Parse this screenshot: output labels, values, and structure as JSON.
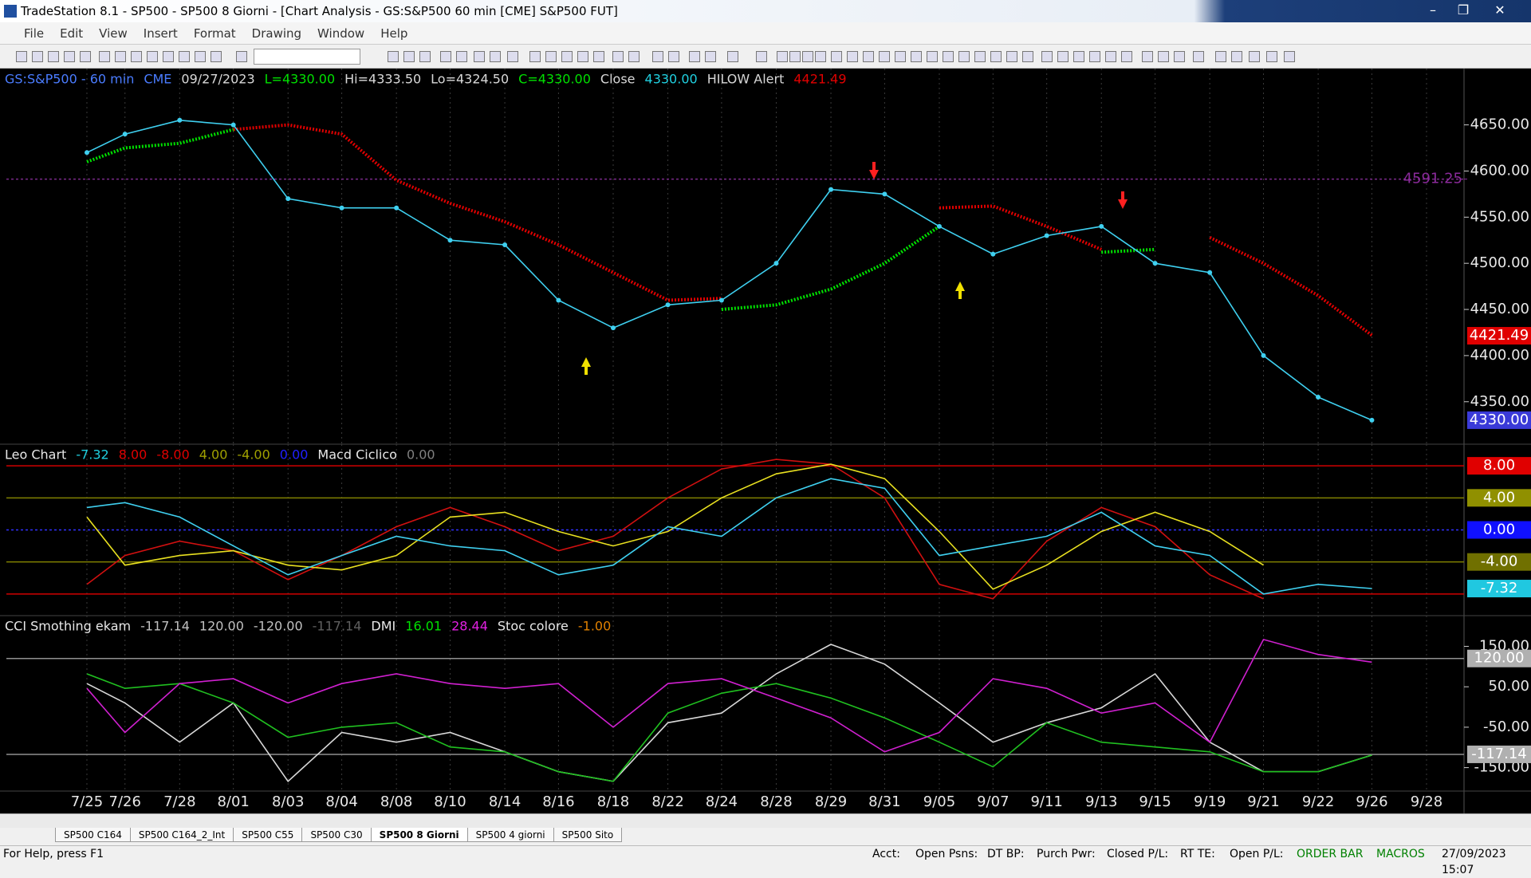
{
  "window": {
    "title": "TradeStation 8.1 - SP500 - SP500 8 Giorni - [Chart Analysis - GS:S&P500  60 min  [CME] S&P500 FUT]",
    "menu": [
      "File",
      "Edit",
      "View",
      "Insert",
      "Format",
      "Drawing",
      "Window",
      "Help"
    ],
    "tabs": [
      "SP500 C164",
      "SP500 C164_2_Int",
      "SP500 C55",
      "SP500 C30",
      "SP500 8 Giorni",
      "SP500 4 giorni",
      "SP500 Sito"
    ],
    "active_tab": 4,
    "status": [
      "For Help, press F1",
      "Acct:",
      "Open Psns:",
      "DT BP:",
      "Purch Pwr:",
      "Closed P/L:",
      "RT TE:",
      "Open P/L:",
      "ORDER BAR",
      "MACROS",
      "27/09/2023 15:07"
    ]
  },
  "chart_data": [
    {
      "type": "line",
      "header": [
        {
          "text": "GS:S&P500 - 60 min",
          "color": "#4a7cff"
        },
        {
          "text": "CME",
          "color": "#4a7cff"
        },
        {
          "text": "09/27/2023",
          "color": "#d8d8d8"
        },
        {
          "text": "L=4330.00",
          "color": "#00e000"
        },
        {
          "text": "Hi=4333.50",
          "color": "#d8d8d8"
        },
        {
          "text": "Lo=4324.50",
          "color": "#d8d8d8"
        },
        {
          "text": "C=4330.00",
          "color": "#00e000"
        },
        {
          "text": "Close",
          "color": "#d8d8d8"
        },
        {
          "text": "4330.00",
          "color": "#20d0e0"
        },
        {
          "text": "HILOW Alert",
          "color": "#d8d8d8"
        },
        {
          "text": "4421.49",
          "color": "#e00000"
        }
      ],
      "categories": [
        "7/25",
        "7/26",
        "7/28",
        "8/01",
        "8/03",
        "8/04",
        "8/08",
        "8/10",
        "8/14",
        "8/16",
        "8/18",
        "8/22",
        "8/24",
        "8/28",
        "8/29",
        "8/31",
        "9/05",
        "9/07",
        "9/11",
        "9/13",
        "9/15",
        "9/19",
        "9/21",
        "9/22",
        "9/26",
        "9/28"
      ],
      "grid": true,
      "ylim": [
        4304,
        4711
      ],
      "yticks": [
        {
          "value": 4350,
          "label": "4350.00"
        },
        {
          "value": 4400,
          "label": "4400.00"
        },
        {
          "value": 4450,
          "label": "4450.00"
        },
        {
          "value": 4500,
          "label": "4500.00"
        },
        {
          "value": 4550,
          "label": "4550.00"
        },
        {
          "value": 4600,
          "label": "4600.00"
        },
        {
          "value": 4650,
          "label": "4650.00"
        }
      ],
      "hlines": [
        {
          "value": 4591.25,
          "color": "#7a2a8a",
          "dash": true
        }
      ],
      "markers": [
        {
          "value": 4591.25,
          "label": "4591.25",
          "color": "#8a2a9a",
          "box": false
        },
        {
          "value": 4421.49,
          "label": "4421.49",
          "color": "#e00000",
          "box": true
        },
        {
          "value": 4330,
          "label": "4330.00",
          "color": "#3a3ad8",
          "box": true
        }
      ],
      "series": [
        {
          "color": "#e00000",
          "dots": false,
          "values": [
            null,
            null,
            null,
            4645,
            4650,
            4640,
            4590,
            4565,
            4545,
            4520,
            4490,
            4460,
            4462,
            null,
            null,
            null,
            4560,
            4562,
            4540,
            4515,
            null,
            4528,
            4500,
            4465,
            4422,
            null
          ]
        },
        {
          "color": "#00e000",
          "dots": false,
          "values": [
            4610,
            4625,
            4630,
            4645,
            null,
            null,
            null,
            null,
            null,
            null,
            null,
            null,
            4450,
            4455,
            4472,
            4500,
            4540,
            null,
            null,
            4512,
            4515,
            null,
            null,
            null,
            null,
            null
          ]
        },
        {
          "color": "#3fd0f0",
          "dots": true,
          "values": [
            4620,
            4640,
            4655,
            4650,
            4570,
            4560,
            4560,
            4525,
            4520,
            4460,
            4430,
            4455,
            4460,
            4500,
            4580,
            4575,
            4540,
            4510,
            4530,
            4540,
            4500,
            4490,
            4400,
            4355,
            4330,
            null
          ]
        }
      ]
    },
    {
      "type": "line",
      "header": [
        {
          "text": "Leo Chart",
          "color": "#e8e8e8"
        },
        {
          "text": "-7.32",
          "color": "#20d0e0"
        },
        {
          "text": "8.00",
          "color": "#e00000"
        },
        {
          "text": "-8.00",
          "color": "#e00000"
        },
        {
          "text": "4.00",
          "color": "#a0a000"
        },
        {
          "text": "-4.00",
          "color": "#a0a000"
        },
        {
          "text": "0.00",
          "color": "#2020ff"
        },
        {
          "text": "Macd Ciclico",
          "color": "#e8e8e8"
        },
        {
          "text": "0.00",
          "color": "#808080"
        }
      ],
      "grid": true,
      "ylim": [
        -10.7,
        10.7
      ],
      "hlines": [
        {
          "value": 8,
          "color": "#d00000",
          "dash": false
        },
        {
          "value": 4,
          "color": "#808000",
          "dash": false
        },
        {
          "value": 0,
          "color": "#3030ff",
          "dash": true
        },
        {
          "value": -4,
          "color": "#808000",
          "dash": false
        },
        {
          "value": -8,
          "color": "#d00000",
          "dash": false
        }
      ],
      "markers": [
        {
          "value": 8,
          "label": "8.00",
          "color": "#e00000",
          "box": true
        },
        {
          "value": 4,
          "label": "4.00",
          "color": "#909000",
          "box": true
        },
        {
          "value": 0,
          "label": "0.00",
          "color": "#1010ff",
          "box": true
        },
        {
          "value": -4,
          "label": "-4.00",
          "color": "#707000",
          "box": true
        },
        {
          "value": -7.32,
          "label": "-7.32",
          "color": "#20c8e0",
          "box": true
        }
      ],
      "series": [
        {
          "color": "#d01010",
          "values": [
            -6.8,
            -3.2,
            -1.4,
            -2.6,
            -6.2,
            -3.2,
            0.4,
            2.8,
            0.4,
            -2.6,
            -0.8,
            4,
            7.6,
            8.8,
            8.2,
            4,
            -6.8,
            -8.6,
            -1.4,
            2.8,
            0.4,
            -5.6,
            -8.6,
            null,
            null,
            null
          ]
        },
        {
          "color": "#e8e020",
          "values": [
            1.6,
            -4.4,
            -3.2,
            -2.6,
            -4.4,
            -5,
            -3.2,
            1.6,
            2.2,
            -0.2,
            -2,
            -0.2,
            4,
            7,
            8.2,
            6.4,
            -0.2,
            -7.4,
            -4.4,
            -0.2,
            2.2,
            -0.2,
            -4.4,
            null,
            null,
            null
          ]
        },
        {
          "color": "#3fd0f0",
          "values": [
            2.8,
            3.4,
            1.6,
            -2,
            -5.6,
            -3.2,
            -0.8,
            -2,
            -2.6,
            -5.6,
            -4.4,
            0.4,
            -0.8,
            4,
            6.4,
            5.2,
            -3.2,
            -2,
            -0.8,
            2.2,
            -2,
            -3.2,
            -8,
            -6.8,
            -7.32,
            null
          ]
        }
      ]
    },
    {
      "type": "line",
      "header": [
        {
          "text": "CCI Smothing ekam",
          "color": "#e8e8e8"
        },
        {
          "text": "-117.14",
          "color": "#c0c0c0"
        },
        {
          "text": "120.00",
          "color": "#c0c0c0"
        },
        {
          "text": "-120.00",
          "color": "#c0c0c0"
        },
        {
          "text": "-117.14",
          "color": "#606060"
        },
        {
          "text": "DMI",
          "color": "#e8e8e8"
        },
        {
          "text": "16.01",
          "color": "#00e000"
        },
        {
          "text": "28.44",
          "color": "#e020e0"
        },
        {
          "text": "Stoc colore",
          "color": "#e8e8e8"
        },
        {
          "text": "-1.00",
          "color": "#e08000"
        }
      ],
      "grid": true,
      "ylim": [
        -208,
        226
      ],
      "yticks": [
        {
          "value": -150,
          "label": "-150.00"
        },
        {
          "value": -50,
          "label": "-50.00"
        },
        {
          "value": 50,
          "label": "50.00"
        },
        {
          "value": 150,
          "label": "150.00"
        }
      ],
      "hlines": [
        {
          "value": 120,
          "color": "#909090",
          "dash": false
        },
        {
          "value": -117.14,
          "color": "#909090",
          "dash": false
        }
      ],
      "markers": [
        {
          "value": 120,
          "label": "120.00",
          "color": "#b0b0b0",
          "box": true
        },
        {
          "value": -117.14,
          "label": "-117.14",
          "color": "#b0b0b0",
          "box": true
        }
      ],
      "series": [
        {
          "color": "#d8d8d8",
          "values": [
            58,
            10,
            -87,
            10,
            -184,
            -63,
            -87,
            -63,
            -111,
            -160,
            -184,
            -39,
            -15,
            82,
            155,
            106,
            10,
            -87,
            -39,
            -2,
            82,
            -87,
            -160,
            -160,
            -119,
            null
          ]
        },
        {
          "color": "#20c020",
          "values": [
            82,
            46,
            58,
            10,
            -75,
            -50,
            -39,
            -99,
            -111,
            -160,
            -184,
            -15,
            34,
            58,
            22,
            -27,
            -87,
            -148,
            -39,
            -87,
            -99,
            -111,
            -160,
            -160,
            -119,
            null
          ]
        },
        {
          "color": "#d020d0",
          "values": [
            46,
            -63,
            58,
            70,
            10,
            58,
            82,
            58,
            46,
            58,
            -50,
            58,
            70,
            22,
            -27,
            -111,
            -63,
            70,
            46,
            -15,
            10,
            -87,
            167,
            130,
            111,
            null
          ]
        }
      ]
    }
  ]
}
